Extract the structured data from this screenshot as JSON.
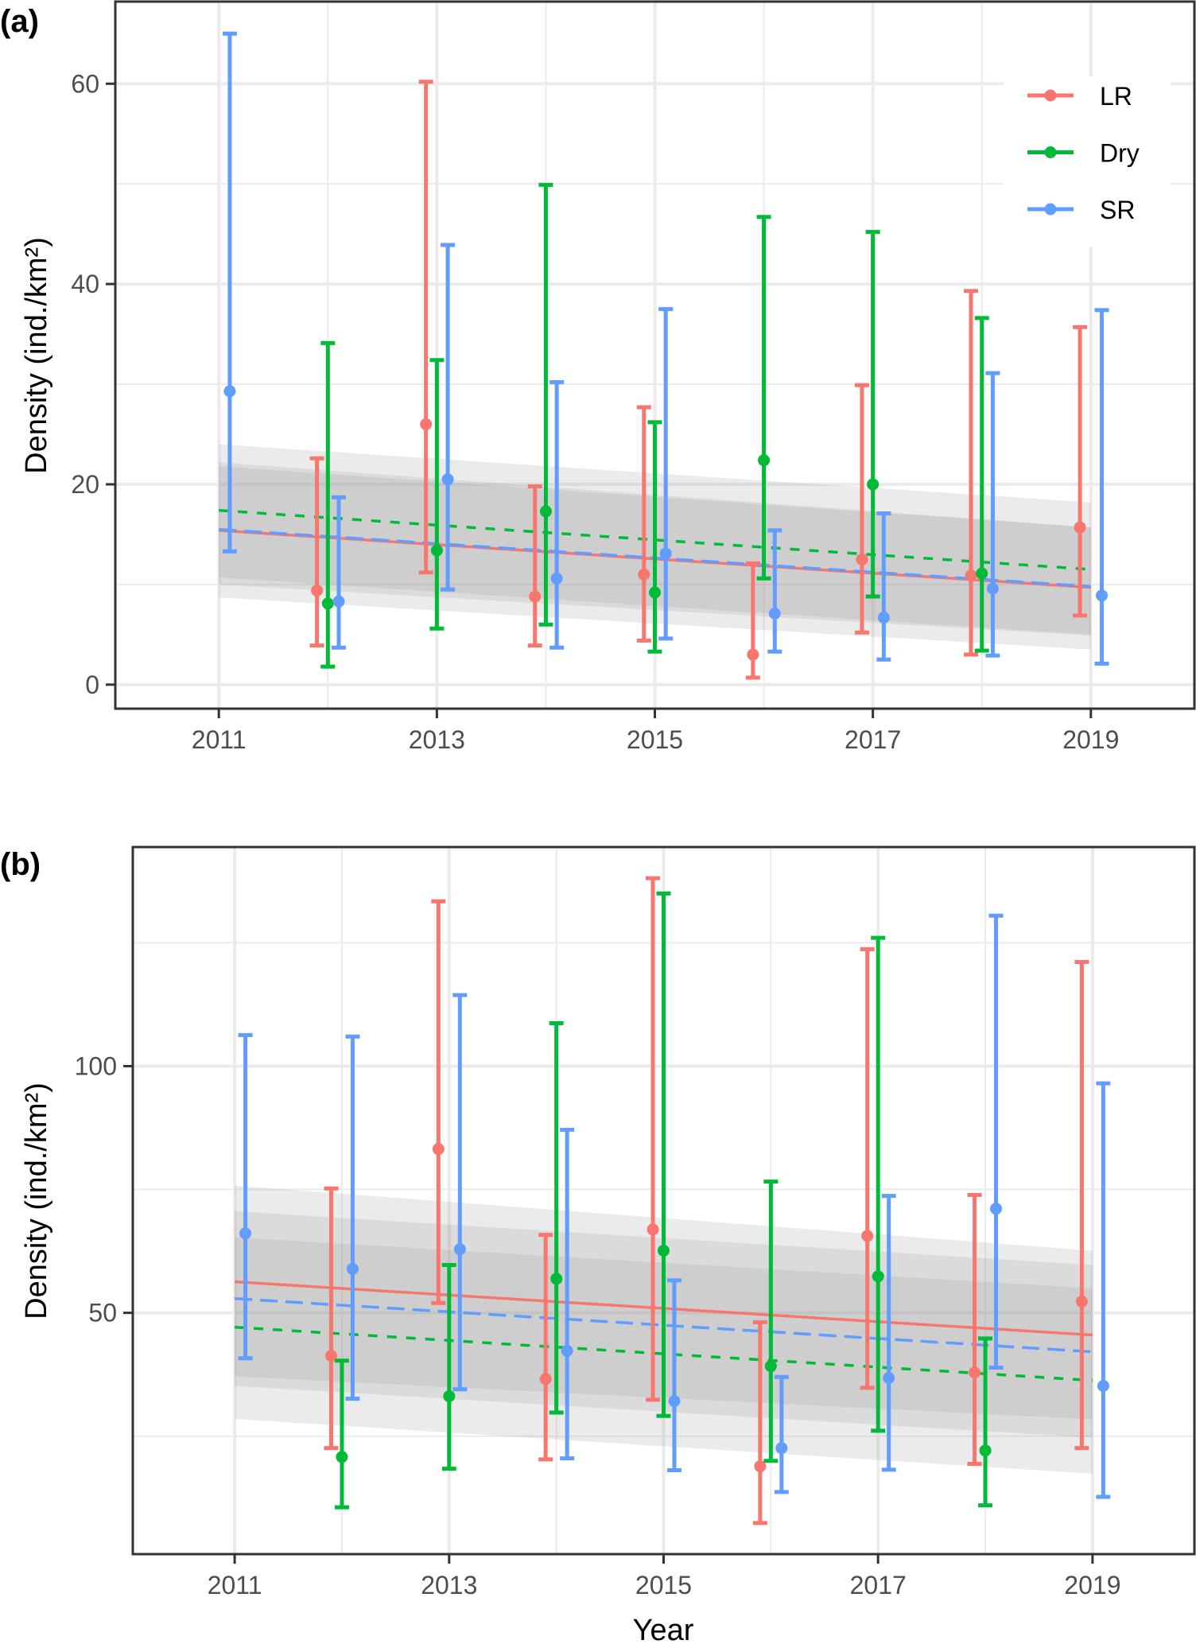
{
  "figure": {
    "x_title": "Year",
    "y_title": "Density (ind./km²)"
  },
  "chart_data": [
    {
      "panel_label": "(a)",
      "type": "line",
      "subtype": "point-errorbar with linear trend and confidence bands",
      "xlabel": "",
      "ylabel": "Density (ind./km²)",
      "xlim": [
        2010.05,
        2019.95
      ],
      "ylim": [
        -2.4,
        68.2
      ],
      "x_ticks": [
        2011,
        2013,
        2015,
        2017,
        2019
      ],
      "x_tick_labels": [
        "2011",
        "2013",
        "2015",
        "2017",
        "2019"
      ],
      "y_ticks": [
        0,
        20,
        40,
        60
      ],
      "y_tick_labels": [
        "0",
        "20",
        "40",
        "60"
      ],
      "y_minor": [
        10,
        30,
        50
      ],
      "x_minor": [
        2012,
        2014,
        2016,
        2018
      ],
      "grid": true,
      "legend": {
        "show": true,
        "position": "top-right"
      },
      "series": [
        {
          "name": "LR",
          "color": "#F8766D",
          "offset": -0.1,
          "trend_style": "solid",
          "points": [
            {
              "x": 2012,
              "y": 9.4,
              "lo": 3.9,
              "hi": 22.6
            },
            {
              "x": 2013,
              "y": 26.0,
              "lo": 11.2,
              "hi": 60.2
            },
            {
              "x": 2014,
              "y": 8.8,
              "lo": 3.9,
              "hi": 19.8
            },
            {
              "x": 2015,
              "y": 11.0,
              "lo": 4.4,
              "hi": 27.7
            },
            {
              "x": 2016,
              "y": 3.0,
              "lo": 0.7,
              "hi": 12.1
            },
            {
              "x": 2017,
              "y": 12.5,
              "lo": 5.2,
              "hi": 29.9
            },
            {
              "x": 2018,
              "y": 10.9,
              "lo": 3.0,
              "hi": 39.3
            },
            {
              "x": 2019,
              "y": 15.7,
              "lo": 6.9,
              "hi": 35.7
            }
          ],
          "trend": {
            "x": [
              2011,
              2019
            ],
            "y": [
              15.4,
              9.7
            ]
          },
          "band": {
            "x": [
              2011,
              2019
            ],
            "lo": [
              10.0,
              4.9
            ],
            "hi": [
              21.8,
              15.7
            ]
          }
        },
        {
          "name": "Dry",
          "color": "#00BA38",
          "offset": 0.0,
          "trend_style": "dotted",
          "points": [
            {
              "x": 2012,
              "y": 8.1,
              "lo": 1.8,
              "hi": 34.1
            },
            {
              "x": 2013,
              "y": 13.4,
              "lo": 5.6,
              "hi": 32.4
            },
            {
              "x": 2014,
              "y": 17.3,
              "lo": 6.0,
              "hi": 49.9
            },
            {
              "x": 2015,
              "y": 9.2,
              "lo": 3.3,
              "hi": 26.2
            },
            {
              "x": 2016,
              "y": 22.4,
              "lo": 10.6,
              "hi": 46.7
            },
            {
              "x": 2017,
              "y": 20.0,
              "lo": 8.8,
              "hi": 45.2
            },
            {
              "x": 2018,
              "y": 11.1,
              "lo": 3.4,
              "hi": 36.6
            }
          ],
          "trend": {
            "x": [
              2011,
              2019
            ],
            "y": [
              17.4,
              11.5
            ]
          },
          "band": {
            "x": [
              2011,
              2019
            ],
            "lo": [
              8.7,
              3.5
            ],
            "hi": [
              24.0,
              18.2
            ]
          }
        },
        {
          "name": "SR",
          "color": "#619CFF",
          "offset": 0.1,
          "trend_style": "dashed",
          "points": [
            {
              "x": 2011,
              "y": 29.3,
              "lo": 13.3,
              "hi": 65.0
            },
            {
              "x": 2012,
              "y": 8.3,
              "lo": 3.7,
              "hi": 18.7
            },
            {
              "x": 2013,
              "y": 20.5,
              "lo": 9.5,
              "hi": 43.9
            },
            {
              "x": 2014,
              "y": 10.6,
              "lo": 3.7,
              "hi": 30.2
            },
            {
              "x": 2015,
              "y": 13.1,
              "lo": 4.6,
              "hi": 37.5
            },
            {
              "x": 2016,
              "y": 7.1,
              "lo": 3.3,
              "hi": 15.4
            },
            {
              "x": 2017,
              "y": 6.7,
              "lo": 2.5,
              "hi": 17.1
            },
            {
              "x": 2018,
              "y": 9.6,
              "lo": 2.9,
              "hi": 31.1
            },
            {
              "x": 2019,
              "y": 8.9,
              "lo": 2.1,
              "hi": 37.4
            }
          ],
          "trend": {
            "x": [
              2011,
              2019
            ],
            "y": [
              15.5,
              9.8
            ]
          },
          "band": {
            "x": [
              2011,
              2019
            ],
            "lo": [
              10.7,
              5.0
            ],
            "hi": [
              22.2,
              15.7
            ]
          }
        }
      ]
    },
    {
      "panel_label": "(b)",
      "type": "line",
      "subtype": "point-errorbar with linear trend and confidence bands",
      "xlabel": "Year",
      "ylabel": "Density (ind./km²)",
      "xlim": [
        2010.05,
        2019.95
      ],
      "ylim": [
        1.1,
        144.4
      ],
      "x_ticks": [
        2011,
        2013,
        2015,
        2017,
        2019
      ],
      "x_tick_labels": [
        "2011",
        "2013",
        "2015",
        "2017",
        "2019"
      ],
      "y_ticks": [
        50,
        100
      ],
      "y_tick_labels": [
        "50",
        "100"
      ],
      "y_minor": [
        25,
        75,
        125
      ],
      "x_minor": [
        2012,
        2014,
        2016,
        2018
      ],
      "grid": true,
      "legend": {
        "show": false
      },
      "series": [
        {
          "name": "LR",
          "color": "#F8766D",
          "offset": -0.1,
          "trend_style": "solid",
          "points": [
            {
              "x": 2012,
              "y": 41.3,
              "lo": 22.6,
              "hi": 75.2
            },
            {
              "x": 2013,
              "y": 83.2,
              "lo": 52.0,
              "hi": 133.4
            },
            {
              "x": 2014,
              "y": 36.6,
              "lo": 20.3,
              "hi": 65.8
            },
            {
              "x": 2015,
              "y": 66.9,
              "lo": 32.4,
              "hi": 138.1
            },
            {
              "x": 2016,
              "y": 18.9,
              "lo": 7.4,
              "hi": 48.1
            },
            {
              "x": 2017,
              "y": 65.6,
              "lo": 34.8,
              "hi": 123.7
            },
            {
              "x": 2018,
              "y": 37.9,
              "lo": 19.4,
              "hi": 73.9
            },
            {
              "x": 2019,
              "y": 52.3,
              "lo": 22.6,
              "hi": 121.1
            }
          ],
          "trend": {
            "x": [
              2011,
              2019
            ],
            "y": [
              56.3,
              45.5
            ]
          },
          "band": {
            "x": [
              2011,
              2019
            ],
            "lo": [
              37.1,
              28.4
            ],
            "hi": [
              75.8,
              62.6
            ]
          }
        },
        {
          "name": "Dry",
          "color": "#00BA38",
          "offset": 0.0,
          "trend_style": "dotted",
          "points": [
            {
              "x": 2012,
              "y": 20.8,
              "lo": 10.6,
              "hi": 40.3
            },
            {
              "x": 2013,
              "y": 33.1,
              "lo": 18.4,
              "hi": 59.7
            },
            {
              "x": 2014,
              "y": 56.9,
              "lo": 29.8,
              "hi": 108.7
            },
            {
              "x": 2015,
              "y": 62.6,
              "lo": 29.1,
              "hi": 135.0
            },
            {
              "x": 2016,
              "y": 39.2,
              "lo": 20.0,
              "hi": 76.6
            },
            {
              "x": 2017,
              "y": 57.4,
              "lo": 26.1,
              "hi": 126.0
            },
            {
              "x": 2018,
              "y": 22.1,
              "lo": 11.0,
              "hi": 44.8
            }
          ],
          "trend": {
            "x": [
              2011,
              2019
            ],
            "y": [
              47.1,
              36.3
            ]
          },
          "band": {
            "x": [
              2011,
              2019
            ],
            "lo": [
              28.5,
              17.4
            ],
            "hi": [
              65.3,
              55.0
            ]
          }
        },
        {
          "name": "SR",
          "color": "#619CFF",
          "offset": 0.1,
          "trend_style": "dashed",
          "points": [
            {
              "x": 2011,
              "y": 66.1,
              "lo": 40.8,
              "hi": 106.3
            },
            {
              "x": 2012,
              "y": 58.9,
              "lo": 32.6,
              "hi": 106.0
            },
            {
              "x": 2013,
              "y": 62.9,
              "lo": 34.5,
              "hi": 114.4
            },
            {
              "x": 2014,
              "y": 42.3,
              "lo": 20.5,
              "hi": 87.1
            },
            {
              "x": 2015,
              "y": 32.1,
              "lo": 18.1,
              "hi": 56.6
            },
            {
              "x": 2016,
              "y": 22.6,
              "lo": 13.7,
              "hi": 37.0
            },
            {
              "x": 2017,
              "y": 36.8,
              "lo": 18.2,
              "hi": 73.7
            },
            {
              "x": 2018,
              "y": 71.1,
              "lo": 38.9,
              "hi": 130.5
            },
            {
              "x": 2019,
              "y": 35.2,
              "lo": 12.7,
              "hi": 96.5
            }
          ],
          "trend": {
            "x": [
              2011,
              2019
            ],
            "y": [
              52.9,
              42.1
            ]
          },
          "band": {
            "x": [
              2011,
              2019
            ],
            "lo": [
              35.2,
              24.7
            ],
            "hi": [
              70.6,
              59.7
            ]
          }
        }
      ]
    }
  ]
}
